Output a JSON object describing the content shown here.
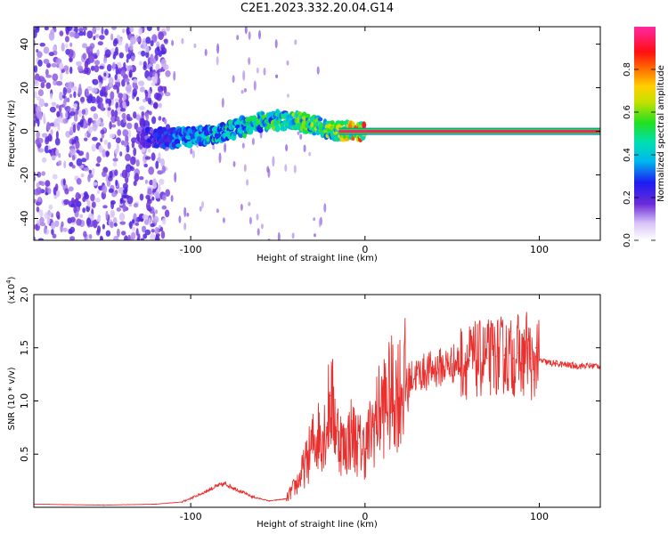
{
  "chart_data": [
    {
      "type": "heatmap",
      "title": "C2E1.2023.332.20.04.G14",
      "xlabel": "Height of straight line (km)",
      "ylabel": "Frequency (Hz)",
      "xlim": [
        -190,
        135
      ],
      "ylim": [
        -50,
        48
      ],
      "xticks": [
        -100,
        0,
        100
      ],
      "xtick_labels": [
        "-100",
        "0",
        "100"
      ],
      "yticks": [
        -40,
        -20,
        0,
        20,
        40
      ],
      "ytick_labels": [
        "-40",
        "-20",
        "0",
        "20",
        "40"
      ],
      "colorbar": {
        "label": "Normalized spectral amplitude",
        "range": [
          0,
          1
        ],
        "ticks": [
          0,
          0.2,
          0.4,
          0.6,
          0.8
        ],
        "tick_labels": [
          "0.0",
          "0.2",
          "0.4",
          "0.6",
          "0.8"
        ],
        "colormap": "rainbow (white to violet, blue, cyan, green, yellow, orange, red, magenta)"
      },
      "features": {
        "noise_region_x": [
          -190,
          -113
        ],
        "noise_amplitude": 0.2,
        "signal_band": [
          {
            "x": -130,
            "y": -3,
            "amp": 0.2
          },
          {
            "x": -110,
            "y": -3,
            "amp": 0.35
          },
          {
            "x": -90,
            "y": -2,
            "amp": 0.45
          },
          {
            "x": -70,
            "y": 2,
            "amp": 0.5
          },
          {
            "x": -55,
            "y": 5,
            "amp": 0.55
          },
          {
            "x": -40,
            "y": 5,
            "amp": 0.6
          },
          {
            "x": -25,
            "y": 2,
            "amp": 0.6
          },
          {
            "x": -15,
            "y": 0,
            "amp": 0.65
          },
          {
            "x": 0,
            "y": 0,
            "amp": 0.9
          },
          {
            "x": 135,
            "y": 0,
            "amp": 0.95
          }
        ]
      }
    },
    {
      "type": "line",
      "title": "",
      "xlabel": "Height of straight line (km)",
      "ylabel": "SNR (10 * v/v)",
      "yscale_label": "(x10",
      "yscale_exp": "4",
      "yscale_close": ")",
      "xlim": [
        -190,
        135
      ],
      "ylim": [
        0,
        2.0
      ],
      "xticks": [
        -100,
        0,
        100
      ],
      "xtick_labels": [
        "-100",
        "0",
        "100"
      ],
      "yticks": [
        0.5,
        1.0,
        1.5,
        2.0
      ],
      "ytick_labels": [
        "0.5",
        "1.0",
        "1.5",
        "2.0"
      ],
      "series": [
        {
          "color": "#e8312f",
          "x": [
            -190,
            -150,
            -120,
            -105,
            -95,
            -85,
            -80,
            -75,
            -65,
            -55,
            -45,
            -38,
            -33,
            -30,
            -26,
            -22,
            -20,
            -16,
            -12,
            -8,
            -4,
            0,
            5,
            10,
            15,
            20,
            25,
            30,
            40,
            50,
            60,
            70,
            75,
            80,
            85,
            88,
            90,
            93,
            95,
            97,
            98,
            100,
            105,
            110,
            120,
            135
          ],
          "y": [
            0.03,
            0.02,
            0.03,
            0.05,
            0.12,
            0.2,
            0.22,
            0.18,
            0.1,
            0.06,
            0.08,
            0.25,
            0.45,
            0.6,
            0.7,
            0.75,
            1.05,
            0.72,
            0.55,
            0.7,
            0.6,
            0.55,
            0.78,
            0.95,
            1.05,
            1.12,
            1.2,
            1.25,
            1.3,
            1.35,
            1.38,
            1.4,
            1.42,
            1.43,
            1.4,
            1.45,
            1.35,
            1.5,
            1.4,
            1.2,
            1.5,
            1.38,
            1.36,
            1.35,
            1.33,
            1.33
          ]
        }
      ]
    }
  ]
}
